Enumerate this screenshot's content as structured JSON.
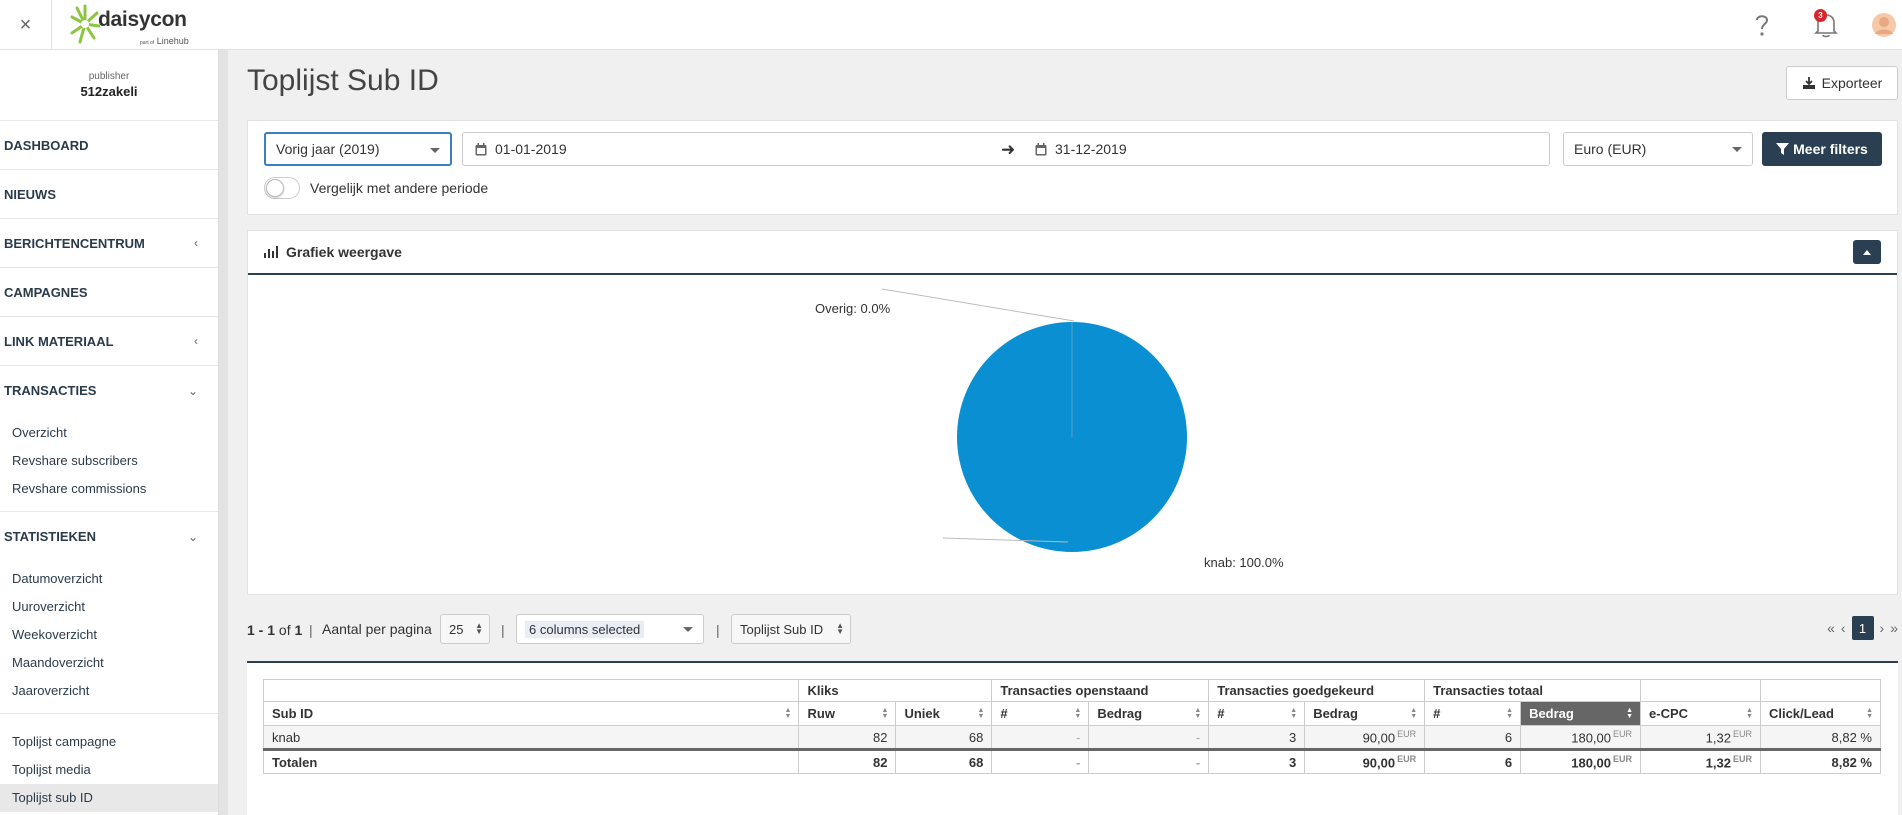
{
  "topbar": {
    "close_label": "×",
    "logo_text": "daisycon",
    "logo_sub_small": "part of",
    "logo_sub": "Linehub",
    "notification_count": "3"
  },
  "sidebar": {
    "role": "publisher",
    "name": "512zakeli",
    "nav": {
      "dashboard": "DASHBOARD",
      "nieuws": "NIEUWS",
      "berichtencentrum": "BERICHTENCENTRUM",
      "campagnes": "CAMPAGNES",
      "link_materiaal": "LINK MATERIAAL",
      "transacties": "TRANSACTIES",
      "statistieken": "STATISTIEKEN"
    },
    "transacties_items": [
      "Overzicht",
      "Revshare subscribers",
      "Revshare commissions"
    ],
    "statistieken_items": [
      "Datumoverzicht",
      "Uuroverzicht",
      "Weekoverzicht",
      "Maandoverzicht",
      "Jaaroverzicht"
    ],
    "toplijst_items": [
      "Toplijst campagne",
      "Toplijst media",
      "Toplijst sub ID"
    ]
  },
  "main": {
    "title": "Toplijst Sub ID",
    "export_label": "Exporteer"
  },
  "filters": {
    "period": "Vorig jaar (2019)",
    "date_start": "01-01-2019",
    "date_end": "31-12-2019",
    "currency": "Euro (EUR)",
    "more_filters": "Meer filters",
    "compare_label": "Vergelijk met andere periode"
  },
  "chart": {
    "panel_title": "Grafiek weergave",
    "label_overig": "Overig: 0.0%",
    "label_knab": "knab: 100.0%"
  },
  "chart_data": {
    "type": "pie",
    "categories": [
      "knab",
      "Overig"
    ],
    "values": [
      100.0,
      0.0
    ],
    "colors": [
      "#0a8fd2",
      "#b0b0b0"
    ]
  },
  "toolbar": {
    "range": "1 - 1",
    "of_text": "of",
    "total": "1",
    "sep": "|",
    "per_page_label": "Aantal per pagina",
    "per_page": "25",
    "columns": "6 columns selected",
    "view": "Toplijst Sub ID",
    "page": "1",
    "first": "«",
    "prev": "‹",
    "next": "›",
    "last": "»"
  },
  "table": {
    "groups": {
      "kliks": "Kliks",
      "openstaand": "Transacties openstaand",
      "goedgekeurd": "Transacties goedgekeurd",
      "totaal": "Transacties totaal"
    },
    "headers": {
      "sub_id": "Sub ID",
      "ruw": "Ruw",
      "uniek": "Uniek",
      "open_count": "#",
      "open_amount": "Bedrag",
      "appr_count": "#",
      "appr_amount": "Bedrag",
      "tot_count": "#",
      "tot_amount": "Bedrag",
      "ecpc": "e-CPC",
      "click_lead": "Click/Lead"
    },
    "currency_unit": "EUR",
    "rows": [
      {
        "sub_id": "knab",
        "ruw": "82",
        "uniek": "68",
        "open_count": "-",
        "open_amount": "-",
        "appr_count": "3",
        "appr_amount": "90,00",
        "tot_count": "6",
        "tot_amount": "180,00",
        "ecpc": "1,32",
        "click_lead": "8,82 %"
      }
    ],
    "totals": {
      "label": "Totalen",
      "ruw": "82",
      "uniek": "68",
      "open_count": "-",
      "open_amount": "-",
      "appr_count": "3",
      "appr_amount": "90,00",
      "tot_count": "6",
      "tot_amount": "180,00",
      "ecpc": "1,32",
      "click_lead": "8,82 %"
    }
  }
}
